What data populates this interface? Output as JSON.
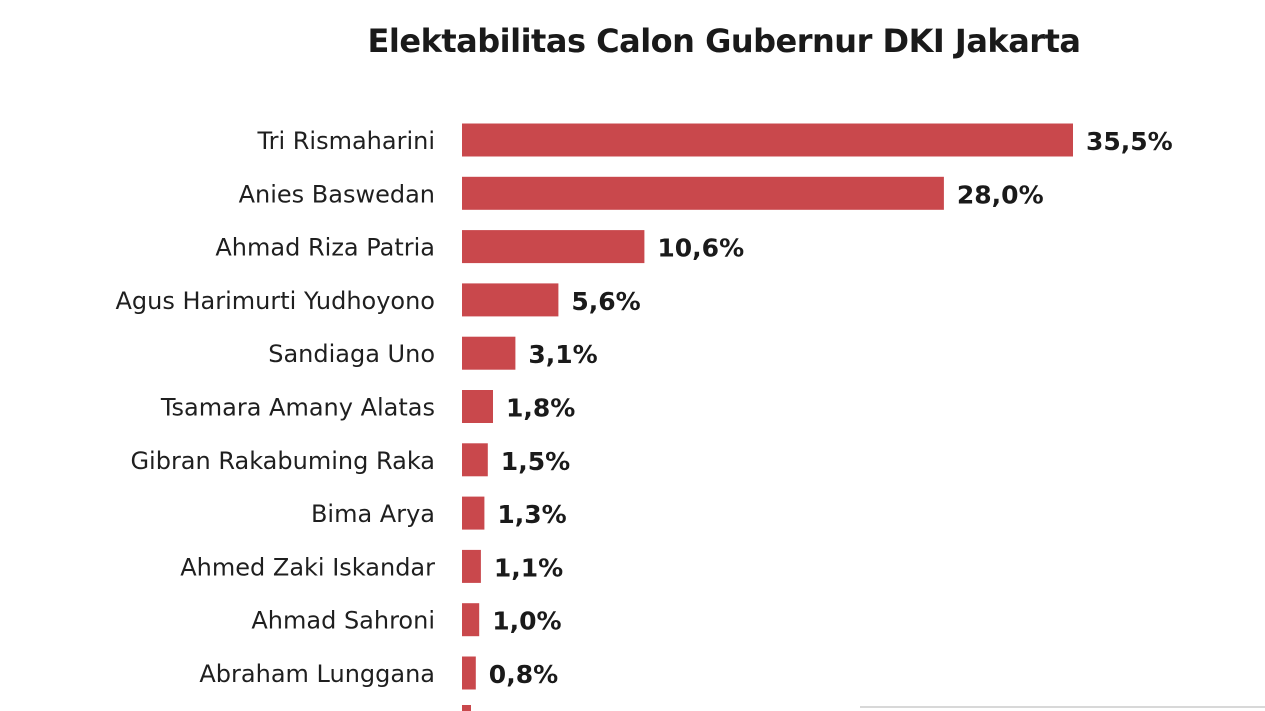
{
  "chart_data": {
    "type": "bar",
    "orientation": "horizontal",
    "title": "Elektabilitas Calon Gubernur DKI Jakarta",
    "bar_color": "#c9484c",
    "categories": [
      "Tri Rismaharini",
      "Anies Baswedan",
      "Ahmad Riza Patria",
      "Agus Harimurti Yudhoyono",
      "Sandiaga Uno",
      "Tsamara Amany Alatas",
      "Gibran Rakabuming Raka",
      "Bima Arya",
      "Ahmed Zaki Iskandar",
      "Ahmad Sahroni",
      "Abraham Lunggana"
    ],
    "values": [
      35.5,
      28.0,
      10.6,
      5.6,
      3.1,
      1.8,
      1.5,
      1.3,
      1.1,
      1.0,
      0.8
    ],
    "value_labels": [
      "35,5%",
      "28,0%",
      "10,6%",
      "5,6%",
      "3,1%",
      "1,8%",
      "1,5%",
      "1,3%",
      "1,1%",
      "1,0%",
      "0,8%"
    ],
    "xlim": [
      0,
      35.5
    ],
    "grid": false,
    "legend": "none"
  }
}
